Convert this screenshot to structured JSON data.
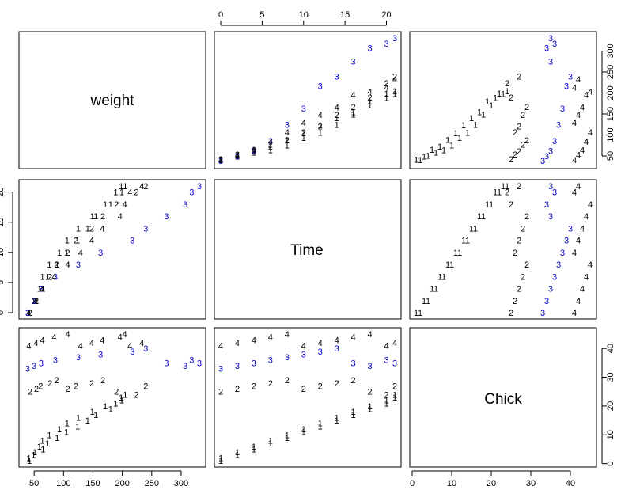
{
  "chart_data": {
    "type": "scatter",
    "subtype": "pairs",
    "variables": [
      "weight",
      "Time",
      "Chick"
    ],
    "ranges": {
      "weight": [
        35,
        331
      ],
      "Time": [
        0,
        21
      ],
      "Chick": [
        1,
        45
      ]
    },
    "axes": {
      "weight": {
        "ticks": [
          50,
          100,
          150,
          200,
          250,
          300
        ],
        "side": "bottom"
      },
      "Time_top": {
        "ticks": [
          0,
          5,
          10,
          15,
          20
        ],
        "side": "top"
      },
      "Time_left": {
        "ticks": [
          0,
          5,
          10,
          15,
          20
        ],
        "side": "left"
      },
      "weight_right": {
        "ticks": [
          50,
          100,
          150,
          200,
          250,
          300
        ],
        "side": "right"
      },
      "Chick_bottom": {
        "ticks": [
          0,
          10,
          20,
          30,
          40
        ],
        "side": "bottom"
      },
      "Chick_right": {
        "ticks": [
          0,
          10,
          20,
          30,
          40
        ],
        "side": "right"
      }
    },
    "point_symbol": "Diet",
    "diet_colors": {
      "1": "#000000",
      "2": "#000000",
      "3": "#0000CC",
      "4": "#000000"
    },
    "points": [
      {
        "weight": 41,
        "Time": 0,
        "Chick": 2,
        "Diet": "1"
      },
      {
        "weight": 51,
        "Time": 2,
        "Chick": 4,
        "Diet": "1"
      },
      {
        "weight": 59,
        "Time": 4,
        "Chick": 6,
        "Diet": "1"
      },
      {
        "weight": 64,
        "Time": 6,
        "Chick": 8,
        "Diet": "1"
      },
      {
        "weight": 76,
        "Time": 8,
        "Chick": 10,
        "Diet": "1"
      },
      {
        "weight": 93,
        "Time": 10,
        "Chick": 12,
        "Diet": "1"
      },
      {
        "weight": 106,
        "Time": 12,
        "Chick": 14,
        "Diet": "1"
      },
      {
        "weight": 125,
        "Time": 14,
        "Chick": 16,
        "Diet": "1"
      },
      {
        "weight": 149,
        "Time": 16,
        "Chick": 18,
        "Diet": "1"
      },
      {
        "weight": 171,
        "Time": 18,
        "Chick": 20,
        "Diet": "1"
      },
      {
        "weight": 199,
        "Time": 20,
        "Chick": 22,
        "Diet": "1"
      },
      {
        "weight": 205,
        "Time": 21,
        "Chick": 24,
        "Diet": "1"
      },
      {
        "weight": 42,
        "Time": 0,
        "Chick": 1,
        "Diet": "1"
      },
      {
        "weight": 49,
        "Time": 2,
        "Chick": 3,
        "Diet": "1"
      },
      {
        "weight": 65,
        "Time": 4,
        "Chick": 5,
        "Diet": "1"
      },
      {
        "weight": 73,
        "Time": 6,
        "Chick": 7,
        "Diet": "1"
      },
      {
        "weight": 89,
        "Time": 8,
        "Chick": 9,
        "Diet": "1"
      },
      {
        "weight": 105,
        "Time": 10,
        "Chick": 11,
        "Diet": "1"
      },
      {
        "weight": 124,
        "Time": 12,
        "Chick": 13,
        "Diet": "1"
      },
      {
        "weight": 141,
        "Time": 14,
        "Chick": 15,
        "Diet": "1"
      },
      {
        "weight": 155,
        "Time": 16,
        "Chick": 17,
        "Diet": "1"
      },
      {
        "weight": 180,
        "Time": 18,
        "Chick": 19,
        "Diet": "1"
      },
      {
        "weight": 189,
        "Time": 20,
        "Chick": 21,
        "Diet": "1"
      },
      {
        "weight": 198,
        "Time": 21,
        "Chick": 23,
        "Diet": "1"
      },
      {
        "weight": 43,
        "Time": 0,
        "Chick": 25,
        "Diet": "2"
      },
      {
        "weight": 54,
        "Time": 2,
        "Chick": 26,
        "Diet": "2"
      },
      {
        "weight": 61,
        "Time": 4,
        "Chick": 27,
        "Diet": "2"
      },
      {
        "weight": 77,
        "Time": 6,
        "Chick": 28,
        "Diet": "2"
      },
      {
        "weight": 88,
        "Time": 8,
        "Chick": 29,
        "Diet": "2"
      },
      {
        "weight": 107,
        "Time": 10,
        "Chick": 26,
        "Diet": "2"
      },
      {
        "weight": 121,
        "Time": 12,
        "Chick": 27,
        "Diet": "2"
      },
      {
        "weight": 148,
        "Time": 14,
        "Chick": 28,
        "Diet": "2"
      },
      {
        "weight": 167,
        "Time": 16,
        "Chick": 29,
        "Diet": "2"
      },
      {
        "weight": 190,
        "Time": 18,
        "Chick": 25,
        "Diet": "2"
      },
      {
        "weight": 224,
        "Time": 20,
        "Chick": 24,
        "Diet": "2"
      },
      {
        "weight": 240,
        "Time": 21,
        "Chick": 27,
        "Diet": "2"
      },
      {
        "weight": 39,
        "Time": 0,
        "Chick": 33,
        "Diet": "3"
      },
      {
        "weight": 50,
        "Time": 2,
        "Chick": 34,
        "Diet": "3"
      },
      {
        "weight": 62,
        "Time": 4,
        "Chick": 35,
        "Diet": "3"
      },
      {
        "weight": 86,
        "Time": 6,
        "Chick": 36,
        "Diet": "3"
      },
      {
        "weight": 125,
        "Time": 8,
        "Chick": 37,
        "Diet": "3"
      },
      {
        "weight": 163,
        "Time": 10,
        "Chick": 38,
        "Diet": "3"
      },
      {
        "weight": 217,
        "Time": 12,
        "Chick": 39,
        "Diet": "3"
      },
      {
        "weight": 240,
        "Time": 14,
        "Chick": 40,
        "Diet": "3"
      },
      {
        "weight": 275,
        "Time": 16,
        "Chick": 35,
        "Diet": "3"
      },
      {
        "weight": 307,
        "Time": 18,
        "Chick": 34,
        "Diet": "3"
      },
      {
        "weight": 318,
        "Time": 20,
        "Chick": 36,
        "Diet": "3"
      },
      {
        "weight": 331,
        "Time": 21,
        "Chick": 35,
        "Diet": "3"
      },
      {
        "weight": 41,
        "Time": 0,
        "Chick": 41,
        "Diet": "4"
      },
      {
        "weight": 53,
        "Time": 2,
        "Chick": 42,
        "Diet": "4"
      },
      {
        "weight": 64,
        "Time": 4,
        "Chick": 43,
        "Diet": "4"
      },
      {
        "weight": 84,
        "Time": 6,
        "Chick": 44,
        "Diet": "4"
      },
      {
        "weight": 107,
        "Time": 8,
        "Chick": 45,
        "Diet": "4"
      },
      {
        "weight": 129,
        "Time": 10,
        "Chick": 41,
        "Diet": "4"
      },
      {
        "weight": 148,
        "Time": 12,
        "Chick": 42,
        "Diet": "4"
      },
      {
        "weight": 166,
        "Time": 14,
        "Chick": 43,
        "Diet": "4"
      },
      {
        "weight": 196,
        "Time": 16,
        "Chick": 44,
        "Diet": "4"
      },
      {
        "weight": 204,
        "Time": 18,
        "Chick": 45,
        "Diet": "4"
      },
      {
        "weight": 213,
        "Time": 20,
        "Chick": 41,
        "Diet": "4"
      },
      {
        "weight": 233,
        "Time": 21,
        "Chick": 42,
        "Diet": "4"
      }
    ]
  }
}
